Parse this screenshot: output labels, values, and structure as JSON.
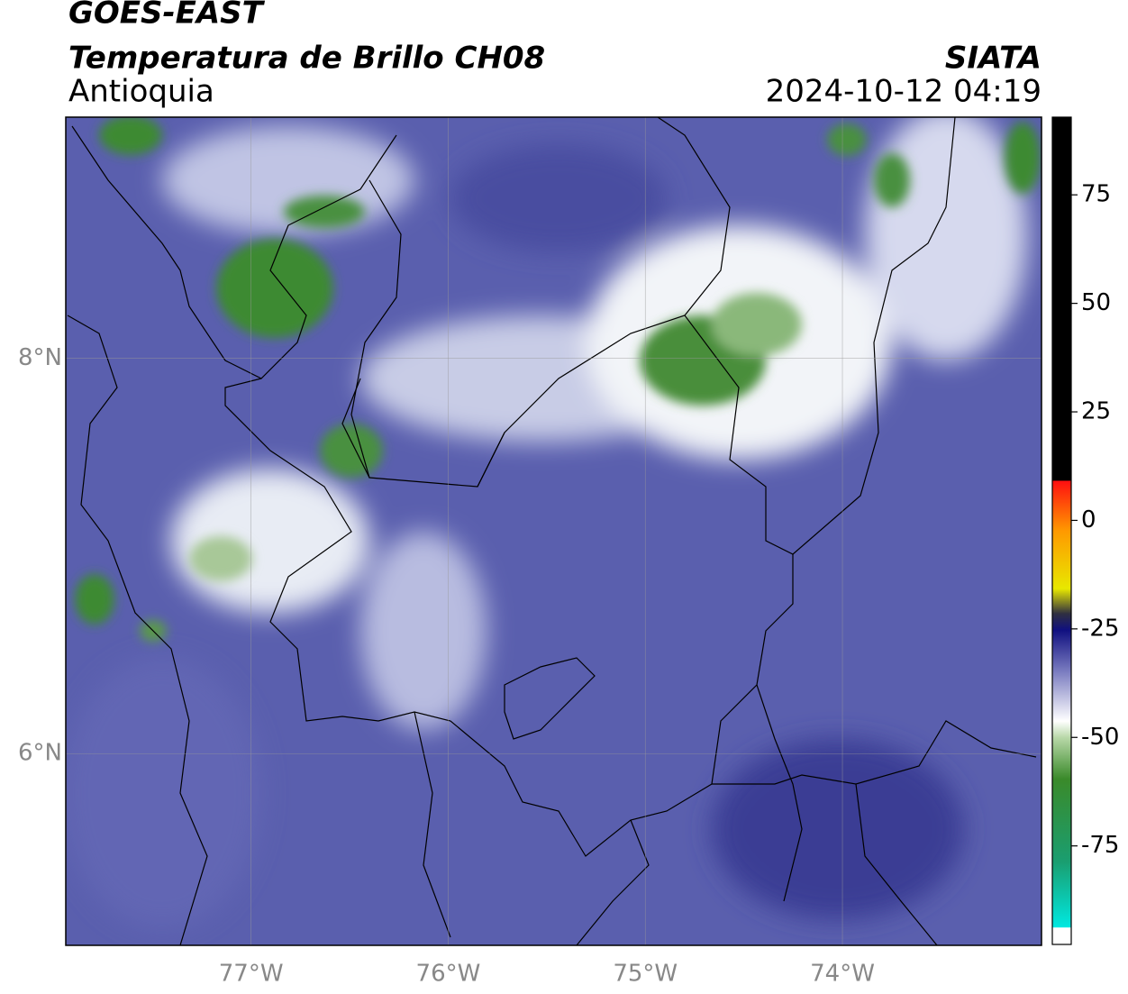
{
  "header": {
    "title": "GOES-EAST",
    "subtitle": "Temperatura de Brillo CH08",
    "region": "Antioquia",
    "source": "SIATA",
    "datetime": "2024-10-12 04:19"
  },
  "map": {
    "xlim": [
      -77.94,
      -72.99
    ],
    "ylim": [
      5.03,
      9.22
    ],
    "xticks": [
      {
        "value": -77,
        "label": "77°W"
      },
      {
        "value": -76,
        "label": "76°W"
      },
      {
        "value": -75,
        "label": "75°W"
      },
      {
        "value": -74,
        "label": "74°W"
      }
    ],
    "yticks": [
      {
        "value": 6,
        "label": "6°N"
      },
      {
        "value": 8,
        "label": "8°N"
      }
    ],
    "grid": true
  },
  "colorbar": {
    "lim": [
      -97.7,
      92.9
    ],
    "ticks": [
      75,
      50,
      25,
      0,
      -25,
      -50,
      -75
    ]
  }
}
